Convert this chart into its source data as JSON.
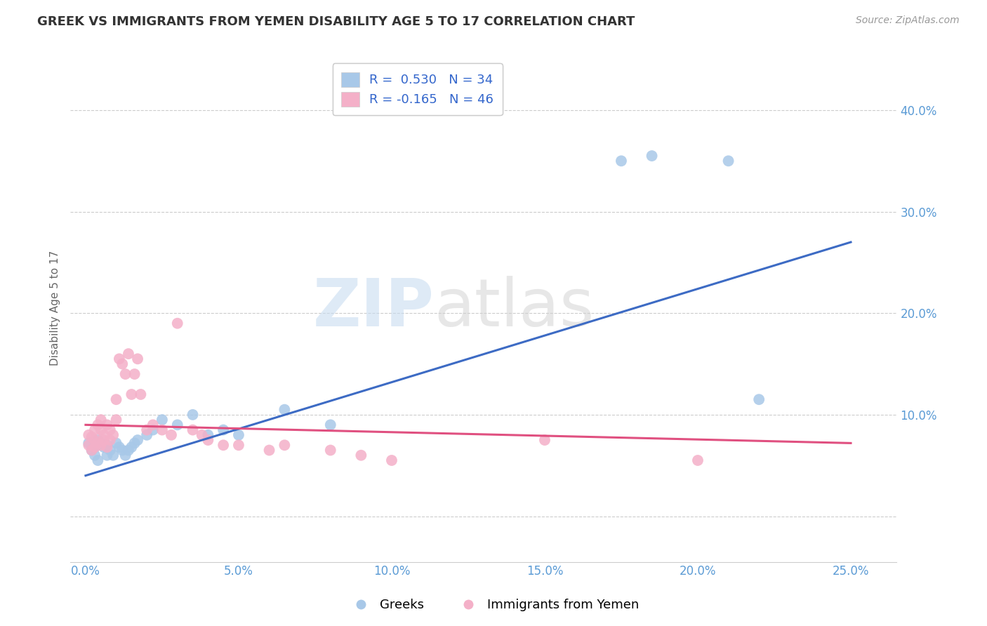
{
  "title": "GREEK VS IMMIGRANTS FROM YEMEN DISABILITY AGE 5 TO 17 CORRELATION CHART",
  "source": "Source: ZipAtlas.com",
  "ylabel": "Disability Age 5 to 17",
  "x_ticks": [
    0.0,
    0.05,
    0.1,
    0.15,
    0.2,
    0.25
  ],
  "x_tick_labels": [
    "0.0%",
    "5.0%",
    "10.0%",
    "15.0%",
    "20.0%",
    "25.0%"
  ],
  "y_ticks": [
    0.0,
    0.1,
    0.2,
    0.3,
    0.4
  ],
  "y_tick_labels": [
    "",
    "10.0%",
    "20.0%",
    "30.0%",
    "40.0%"
  ],
  "xlim": [
    -0.005,
    0.265
  ],
  "ylim": [
    -0.045,
    0.455
  ],
  "legend_labels": [
    "R =  0.530   N = 34",
    "R = -0.165   N = 46"
  ],
  "legend_series": [
    "Greeks",
    "Immigrants from Yemen"
  ],
  "blue_color": "#A8C8E8",
  "pink_color": "#F4B0C8",
  "blue_line_color": "#3D6BC4",
  "pink_line_color": "#E05080",
  "watermark_zip": "ZIP",
  "watermark_atlas": "atlas",
  "greek_x": [
    0.001,
    0.002,
    0.003,
    0.003,
    0.004,
    0.004,
    0.005,
    0.006,
    0.007,
    0.007,
    0.008,
    0.009,
    0.01,
    0.011,
    0.012,
    0.013,
    0.014,
    0.015,
    0.016,
    0.017,
    0.02,
    0.022,
    0.025,
    0.03,
    0.035,
    0.04,
    0.045,
    0.05,
    0.065,
    0.08,
    0.175,
    0.185,
    0.21,
    0.22
  ],
  "greek_y": [
    0.072,
    0.065,
    0.06,
    0.068,
    0.055,
    0.075,
    0.072,
    0.068,
    0.06,
    0.07,
    0.065,
    0.06,
    0.072,
    0.068,
    0.065,
    0.06,
    0.065,
    0.068,
    0.072,
    0.075,
    0.08,
    0.085,
    0.095,
    0.09,
    0.1,
    0.08,
    0.085,
    0.08,
    0.105,
    0.09,
    0.35,
    0.355,
    0.35,
    0.115
  ],
  "yemen_x": [
    0.001,
    0.001,
    0.002,
    0.002,
    0.003,
    0.003,
    0.003,
    0.004,
    0.004,
    0.005,
    0.005,
    0.005,
    0.006,
    0.006,
    0.007,
    0.007,
    0.008,
    0.008,
    0.009,
    0.01,
    0.01,
    0.011,
    0.012,
    0.013,
    0.014,
    0.015,
    0.016,
    0.017,
    0.018,
    0.02,
    0.022,
    0.025,
    0.028,
    0.03,
    0.035,
    0.038,
    0.04,
    0.045,
    0.05,
    0.06,
    0.065,
    0.08,
    0.09,
    0.1,
    0.15,
    0.2
  ],
  "yemen_y": [
    0.08,
    0.07,
    0.078,
    0.065,
    0.085,
    0.075,
    0.068,
    0.09,
    0.072,
    0.085,
    0.07,
    0.095,
    0.08,
    0.075,
    0.09,
    0.068,
    0.085,
    0.075,
    0.08,
    0.115,
    0.095,
    0.155,
    0.15,
    0.14,
    0.16,
    0.12,
    0.14,
    0.155,
    0.12,
    0.085,
    0.09,
    0.085,
    0.08,
    0.19,
    0.085,
    0.08,
    0.075,
    0.07,
    0.07,
    0.065,
    0.07,
    0.065,
    0.06,
    0.055,
    0.075,
    0.055
  ],
  "blue_trend_x0": 0.0,
  "blue_trend_y0": 0.04,
  "blue_trend_x1": 0.25,
  "blue_trend_y1": 0.27,
  "pink_trend_x0": 0.0,
  "pink_trend_y0": 0.09,
  "pink_trend_x1": 0.25,
  "pink_trend_y1": 0.072
}
